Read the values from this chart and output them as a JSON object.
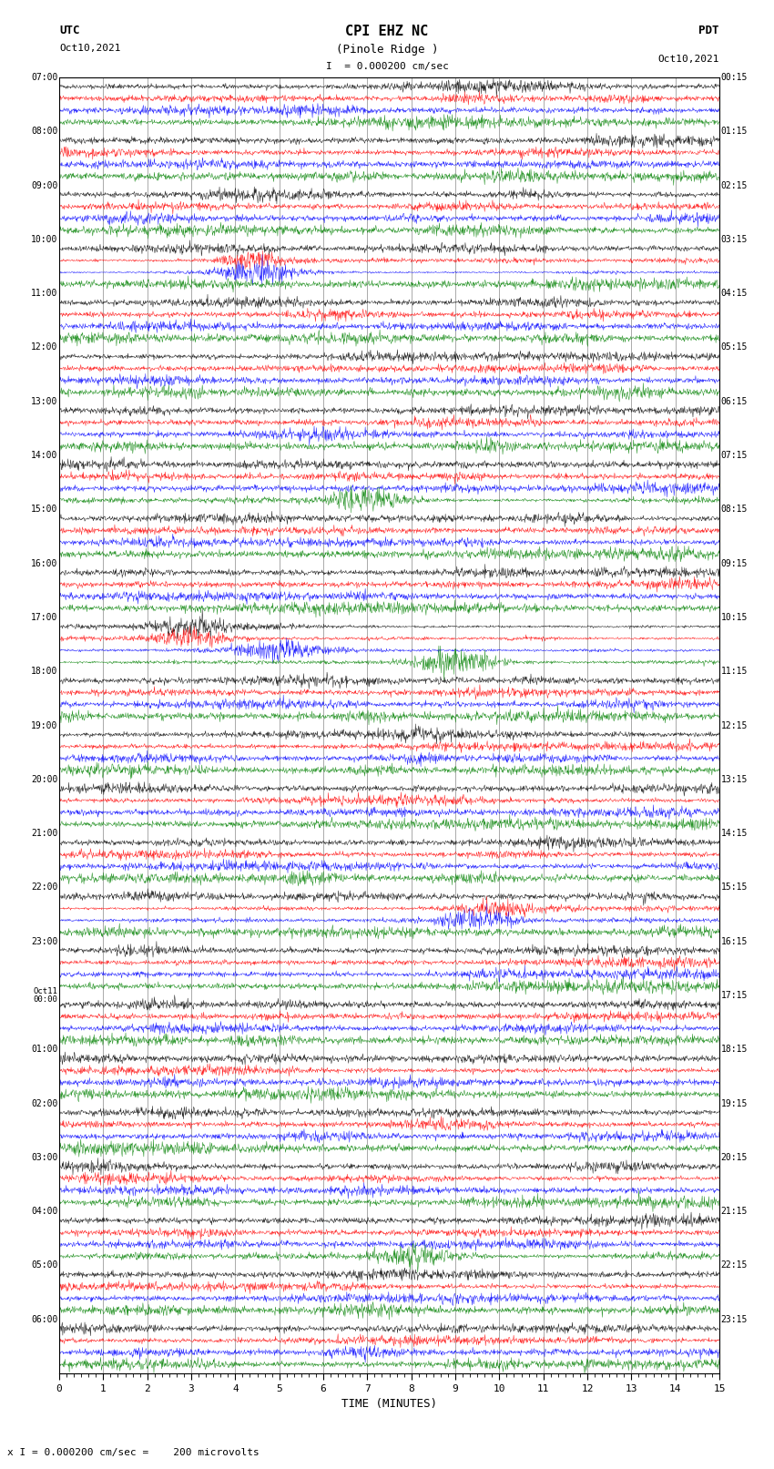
{
  "title_line1": "CPI EHZ NC",
  "title_line2": "(Pinole Ridge )",
  "title_scale": "I  = 0.000200 cm/sec",
  "label_left_header": "UTC",
  "label_left_date": "Oct10,2021",
  "label_right_header": "PDT",
  "label_right_date": "Oct10,2021",
  "xlabel": "TIME (MINUTES)",
  "bottom_label": "x I = 0.000200 cm/sec =    200 microvolts",
  "xmin": 0,
  "xmax": 15,
  "xticks": [
    0,
    1,
    2,
    3,
    4,
    5,
    6,
    7,
    8,
    9,
    10,
    11,
    12,
    13,
    14,
    15
  ],
  "trace_colors": [
    "black",
    "red",
    "blue",
    "green"
  ],
  "n_rows": 24,
  "utc_labels": [
    "07:00",
    "08:00",
    "09:00",
    "10:00",
    "11:00",
    "12:00",
    "13:00",
    "14:00",
    "15:00",
    "16:00",
    "17:00",
    "18:00",
    "19:00",
    "20:00",
    "21:00",
    "22:00",
    "23:00",
    "Oct11\n00:00",
    "01:00",
    "02:00",
    "03:00",
    "04:00",
    "05:00",
    "06:00"
  ],
  "pdt_labels": [
    "00:15",
    "01:15",
    "02:15",
    "03:15",
    "04:15",
    "05:15",
    "06:15",
    "07:15",
    "08:15",
    "09:15",
    "10:15",
    "11:15",
    "12:15",
    "13:15",
    "14:15",
    "15:15",
    "16:15",
    "17:15",
    "18:15",
    "19:15",
    "20:15",
    "21:15",
    "22:15",
    "23:15"
  ],
  "background_color": "#ffffff",
  "grid_color": "#888888",
  "figsize": [
    8.5,
    16.13
  ],
  "dpi": 100
}
